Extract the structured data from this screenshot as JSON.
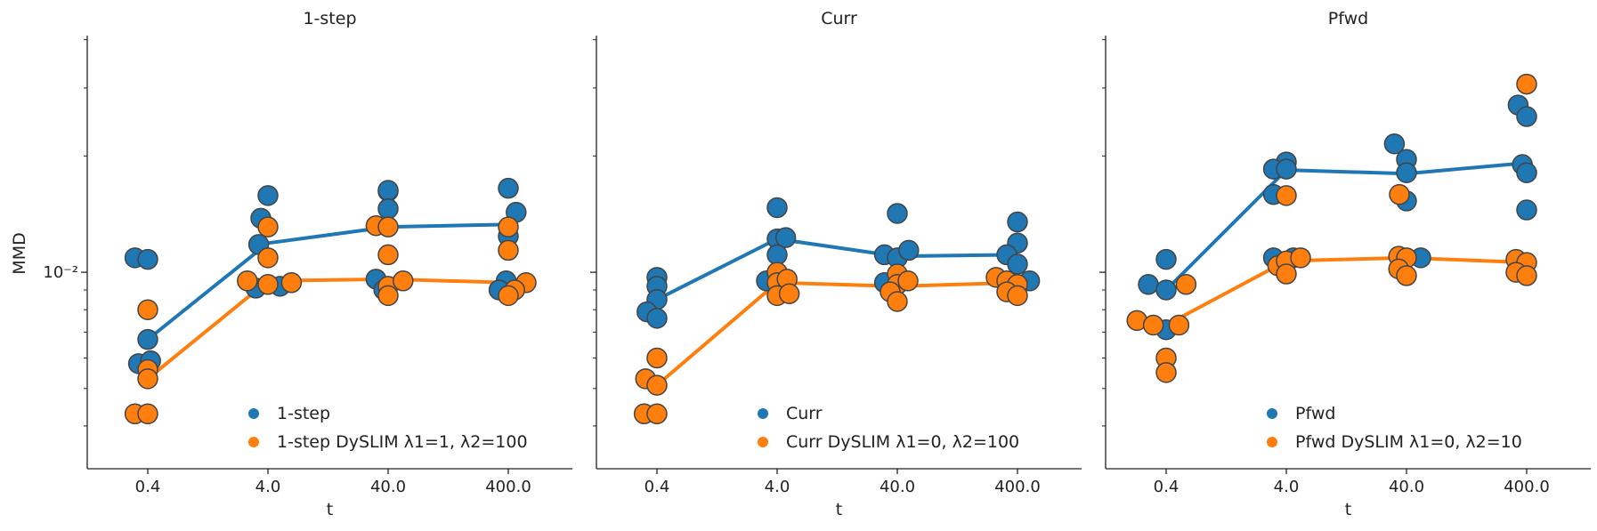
{
  "figure": {
    "ylabel": "MMD",
    "y_tick_label": "10⁻²",
    "xlabel": "t",
    "x_tick_labels": [
      "0.4",
      "4.0",
      "40.0",
      "400.0"
    ]
  },
  "colors": {
    "base": "#1f77b4",
    "dyslim": "#ff7f0e",
    "marker_edge": "#444444",
    "axis": "#222222"
  },
  "chart_data": [
    {
      "type": "scatter",
      "title": "1-step",
      "x_scale": "log",
      "y_scale": "log",
      "ylim": [
        0.0031,
        0.041
      ],
      "categories": [
        "0.4",
        "4.0",
        "40.0",
        "400.0"
      ],
      "series": [
        {
          "name": "1-step",
          "color": "#1f77b4",
          "points": [
            [
              "0.4",
              0.0109,
              -0.18
            ],
            [
              "0.4",
              0.0108,
              0.0
            ],
            [
              "0.4",
              0.0067,
              0.0
            ],
            [
              "0.4",
              0.0058,
              -0.13
            ],
            [
              "0.4",
              0.0059,
              0.04
            ],
            [
              "4.0",
              0.0158,
              0.0
            ],
            [
              "4.0",
              0.0138,
              -0.1
            ],
            [
              "4.0",
              0.0118,
              -0.13
            ],
            [
              "4.0",
              0.0091,
              -0.17
            ],
            [
              "4.0",
              0.0092,
              0.17
            ],
            [
              "40.0",
              0.0162,
              0.0
            ],
            [
              "40.0",
              0.0163,
              0.0
            ],
            [
              "40.0",
              0.0146,
              0.0
            ],
            [
              "40.0",
              0.0096,
              -0.17
            ],
            [
              "40.0",
              0.009,
              -0.06
            ],
            [
              "400.0",
              0.0165,
              0.0
            ],
            [
              "400.0",
              0.0124,
              0.0
            ],
            [
              "400.0",
              0.0143,
              0.11
            ],
            [
              "400.0",
              0.0095,
              -0.03
            ],
            [
              "400.0",
              0.009,
              -0.13
            ]
          ],
          "line": [
            0.0067,
            0.0119,
            0.0131,
            0.0133
          ]
        },
        {
          "name": "1-step DySLIM λ1=1, λ2=100",
          "color": "#ff7f0e",
          "points": [
            [
              "0.4",
              0.008,
              0.0
            ],
            [
              "0.4",
              0.0056,
              0.0
            ],
            [
              "0.4",
              0.0053,
              0.0
            ],
            [
              "0.4",
              0.0043,
              -0.18
            ],
            [
              "0.4",
              0.0043,
              0.0
            ],
            [
              "4.0",
              0.0095,
              -0.29
            ],
            [
              "4.0",
              0.0131,
              0.0
            ],
            [
              "4.0",
              0.0109,
              0.0
            ],
            [
              "4.0",
              0.0093,
              0.0
            ],
            [
              "4.0",
              0.0094,
              0.33
            ],
            [
              "40.0",
              0.0132,
              -0.17
            ],
            [
              "40.0",
              0.0131,
              0.0
            ],
            [
              "40.0",
              0.0111,
              0.0
            ],
            [
              "40.0",
              0.0092,
              0.0
            ],
            [
              "40.0",
              0.0087,
              0.0
            ],
            [
              "40.0",
              0.0095,
              0.21
            ],
            [
              "400.0",
              0.0131,
              0.0
            ],
            [
              "400.0",
              0.0114,
              0.0
            ],
            [
              "400.0",
              0.0094,
              0.25
            ],
            [
              "400.0",
              0.009,
              0.09
            ],
            [
              "400.0",
              0.0087,
              0.0
            ]
          ],
          "line": [
            0.0053,
            0.0095,
            0.0096,
            0.0094
          ]
        }
      ]
    },
    {
      "type": "scatter",
      "title": "Curr",
      "x_scale": "log",
      "y_scale": "log",
      "ylim": [
        0.0031,
        0.041
      ],
      "categories": [
        "0.4",
        "4.0",
        "40.0",
        "400.0"
      ],
      "series": [
        {
          "name": "Curr",
          "color": "#1f77b4",
          "points": [
            [
              "0.4",
              0.0097,
              0.0
            ],
            [
              "0.4",
              0.0092,
              0.0
            ],
            [
              "0.4",
              0.0085,
              0.0
            ],
            [
              "0.4",
              0.0079,
              -0.14
            ],
            [
              "0.4",
              0.0076,
              0.0
            ],
            [
              "4.0",
              0.0147,
              0.0
            ],
            [
              "4.0",
              0.0122,
              0.0
            ],
            [
              "4.0",
              0.0123,
              0.12
            ],
            [
              "4.0",
              0.0111,
              0.0
            ],
            [
              "4.0",
              0.0095,
              -0.15
            ],
            [
              "40.0",
              0.0142,
              0.0
            ],
            [
              "40.0",
              0.0111,
              -0.18
            ],
            [
              "40.0",
              0.0109,
              0.0
            ],
            [
              "40.0",
              0.0114,
              0.16
            ],
            [
              "40.0",
              0.0094,
              -0.18
            ],
            [
              "400.0",
              0.0135,
              0.0
            ],
            [
              "400.0",
              0.0119,
              0.0
            ],
            [
              "400.0",
              0.0111,
              -0.15
            ],
            [
              "400.0",
              0.0105,
              0.0
            ],
            [
              "400.0",
              0.0095,
              0.17
            ]
          ],
          "line": [
            0.0085,
            0.0122,
            0.011,
            0.0111
          ]
        },
        {
          "name": "Curr DySLIM λ1=0, λ2=100",
          "color": "#ff7f0e",
          "points": [
            [
              "0.4",
              0.006,
              0.0
            ],
            [
              "0.4",
              0.0053,
              -0.16
            ],
            [
              "0.4",
              0.0051,
              0.0
            ],
            [
              "0.4",
              0.0043,
              -0.18
            ],
            [
              "0.4",
              0.0043,
              0.0
            ],
            [
              "4.0",
              0.01,
              0.0
            ],
            [
              "4.0",
              0.0094,
              0.0
            ],
            [
              "4.0",
              0.0096,
              0.14
            ],
            [
              "4.0",
              0.0087,
              0.0
            ],
            [
              "4.0",
              0.0088,
              0.17
            ],
            [
              "40.0",
              0.0099,
              0.0
            ],
            [
              "40.0",
              0.0093,
              0.0
            ],
            [
              "40.0",
              0.0095,
              0.15
            ],
            [
              "40.0",
              0.0089,
              -0.1
            ],
            [
              "40.0",
              0.0084,
              0.0
            ],
            [
              "400.0",
              0.0097,
              -0.3
            ],
            [
              "400.0",
              0.0095,
              -0.15
            ],
            [
              "400.0",
              0.0093,
              0.0
            ],
            [
              "400.0",
              0.0089,
              -0.15
            ],
            [
              "400.0",
              0.0087,
              0.0
            ]
          ],
          "line": [
            0.0051,
            0.0094,
            0.0092,
            0.0094
          ]
        }
      ]
    },
    {
      "type": "scatter",
      "title": "Pfwd",
      "x_scale": "log",
      "y_scale": "log",
      "ylim": [
        0.0031,
        0.041
      ],
      "categories": [
        "0.4",
        "4.0",
        "40.0",
        "400.0"
      ],
      "series": [
        {
          "name": "Pfwd",
          "color": "#1f77b4",
          "points": [
            [
              "0.4",
              0.0108,
              0.0
            ],
            [
              "0.4",
              0.0093,
              -0.25
            ],
            [
              "0.4",
              0.009,
              0.0
            ],
            [
              "0.4",
              0.0071,
              0.0
            ],
            [
              "4.0",
              0.0193,
              0.0
            ],
            [
              "4.0",
              0.0185,
              -0.18
            ],
            [
              "4.0",
              0.0185,
              0.0
            ],
            [
              "4.0",
              0.0159,
              -0.18
            ],
            [
              "4.0",
              0.0109,
              -0.18
            ],
            [
              "4.0",
              0.0109,
              0.1
            ],
            [
              "40.0",
              0.0215,
              -0.17
            ],
            [
              "40.0",
              0.0196,
              0.0
            ],
            [
              "40.0",
              0.0181,
              0.0
            ],
            [
              "40.0",
              0.0153,
              0.0
            ],
            [
              "40.0",
              0.0109,
              0.2
            ],
            [
              "400.0",
              0.0271,
              -0.12
            ],
            [
              "400.0",
              0.0253,
              0.0
            ],
            [
              "400.0",
              0.019,
              -0.06
            ],
            [
              "400.0",
              0.0181,
              0.0
            ],
            [
              "400.0",
              0.0145,
              0.0
            ]
          ],
          "line": [
            0.009,
            0.0184,
            0.018,
            0.0192
          ]
        },
        {
          "name": "Pfwd DySLIM λ1=0, λ2=10",
          "color": "#ff7f0e",
          "points": [
            [
              "0.4",
              0.0093,
              0.28
            ],
            [
              "0.4",
              0.0075,
              -0.41
            ],
            [
              "0.4",
              0.0073,
              -0.18
            ],
            [
              "0.4",
              0.0073,
              0.18
            ],
            [
              "0.4",
              0.006,
              0.0
            ],
            [
              "0.4",
              0.0055,
              0.0
            ],
            [
              "4.0",
              0.0158,
              0.0
            ],
            [
              "4.0",
              0.0104,
              -0.12
            ],
            [
              "4.0",
              0.0107,
              0.0
            ],
            [
              "4.0",
              0.0099,
              0.0
            ],
            [
              "4.0",
              0.0109,
              0.2
            ],
            [
              "40.0",
              0.011,
              -0.11
            ],
            [
              "40.0",
              0.0109,
              0.0
            ],
            [
              "40.0",
              0.0159,
              -0.1
            ],
            [
              "40.0",
              0.0102,
              -0.11
            ],
            [
              "40.0",
              0.0098,
              0.0
            ],
            [
              "400.0",
              0.0307,
              0.0
            ],
            [
              "400.0",
              0.0108,
              -0.15
            ],
            [
              "400.0",
              0.0106,
              0.0
            ],
            [
              "400.0",
              0.01,
              -0.15
            ],
            [
              "400.0",
              0.0098,
              0.0
            ]
          ],
          "line": [
            0.0073,
            0.0107,
            0.0109,
            0.0106
          ]
        }
      ]
    }
  ]
}
